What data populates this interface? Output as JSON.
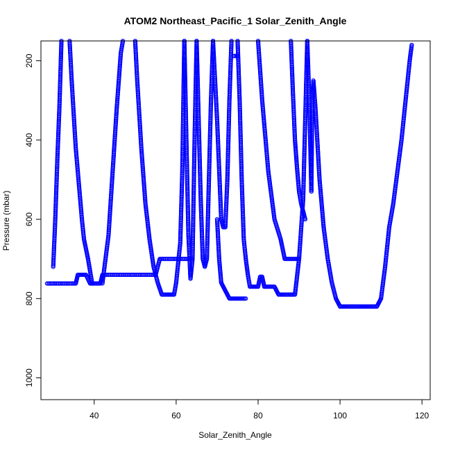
{
  "chart_data": {
    "type": "scatter",
    "title": "ATOM2 Northeast_Pacific_1 Solar_Zenith_Angle",
    "xlabel": "Solar_Zenith_Angle",
    "ylabel": "Pressure (mbar)",
    "xlim": [
      27,
      122
    ],
    "ylim": [
      1055,
      150
    ],
    "y_reversed": true,
    "x_ticks": [
      40,
      60,
      80,
      100,
      120
    ],
    "y_ticks": [
      200,
      400,
      600,
      800,
      1000
    ],
    "marker": "open-circle",
    "colors": {
      "points": "#0000ff",
      "axes": "#000000",
      "background": "#ffffff"
    },
    "grid": false,
    "legend": "none",
    "series": [
      {
        "x": [
          28.5,
          35.5,
          36,
          38,
          39,
          41.5,
          42,
          55,
          56,
          57,
          64
        ],
        "y": [
          762,
          762,
          740,
          740,
          762,
          762,
          740,
          740,
          700,
          700,
          700
        ]
      },
      {
        "x": [
          30,
          30.5,
          31,
          31.5,
          31.8,
          32
        ],
        "y": [
          720,
          600,
          450,
          320,
          220,
          150
        ]
      },
      {
        "x": [
          34,
          34.5,
          35.5,
          37,
          37.5,
          38.5,
          39.5
        ],
        "y": [
          150,
          250,
          420,
          600,
          650,
          700,
          762
        ]
      },
      {
        "x": [
          42,
          43.5,
          44.5,
          45.5,
          46.5,
          47
        ],
        "y": [
          762,
          640,
          480,
          320,
          180,
          150
        ]
      },
      {
        "x": [
          50,
          50.5,
          51.5,
          52.5,
          53.5,
          54.5,
          55.5,
          56.5,
          57.5,
          59.5,
          60,
          61,
          61.5,
          62
        ],
        "y": [
          150,
          250,
          420,
          560,
          650,
          720,
          760,
          790,
          790,
          790,
          760,
          660,
          480,
          150
        ]
      },
      {
        "x": [
          62,
          62.5,
          63,
          63.5,
          64,
          64.5,
          65
        ],
        "y": [
          150,
          400,
          640,
          750,
          700,
          400,
          150
        ]
      },
      {
        "x": [
          65,
          65.5,
          66,
          66.5,
          67,
          67.5,
          68,
          68.5,
          69
        ],
        "y": [
          150,
          350,
          550,
          700,
          720,
          700,
          500,
          300,
          150
        ]
      },
      {
        "x": [
          69,
          70,
          71,
          71.5,
          72,
          72.5,
          73,
          73.5
        ],
        "y": [
          150,
          350,
          600,
          620,
          620,
          500,
          300,
          150
        ]
      },
      {
        "x": [
          70,
          70.5,
          71,
          72,
          73,
          74,
          75,
          76,
          77
        ],
        "y": [
          600,
          700,
          760,
          780,
          800,
          800,
          800,
          800,
          800
        ]
      },
      {
        "x": [
          74,
          75
        ],
        "y": [
          188,
          188
        ]
      },
      {
        "x": [
          75,
          75.5,
          76,
          76.5,
          77,
          77.5,
          78,
          79,
          80,
          80.5,
          81,
          81.5,
          82
        ],
        "y": [
          150,
          300,
          500,
          650,
          700,
          740,
          770,
          770,
          770,
          745,
          745,
          770,
          770
        ]
      },
      {
        "x": [
          82,
          83,
          84,
          85,
          86,
          88
        ],
        "y": [
          770,
          770,
          770,
          790,
          790,
          790
        ]
      },
      {
        "x": [
          80,
          81,
          82.5,
          84,
          85.5,
          86.5,
          87.5,
          89,
          90
        ],
        "y": [
          150,
          300,
          480,
          600,
          650,
          700,
          700,
          700,
          700
        ]
      },
      {
        "x": [
          88,
          89,
          90,
          91,
          91.5,
          92
        ],
        "y": [
          790,
          790,
          700,
          550,
          350,
          150
        ]
      },
      {
        "x": [
          92,
          92.5,
          93,
          93.2,
          93.5,
          94,
          95,
          96,
          97,
          98,
          99,
          100
        ],
        "y": [
          150,
          300,
          530,
          310,
          250,
          320,
          500,
          620,
          700,
          760,
          800,
          820
        ]
      },
      {
        "x": [
          100,
          103,
          106,
          109,
          110,
          111,
          112,
          113,
          114,
          115,
          116,
          117,
          117.5
        ],
        "y": [
          820,
          820,
          820,
          820,
          800,
          720,
          620,
          560,
          480,
          400,
          300,
          200,
          160
        ]
      },
      {
        "x": [
          88,
          88.5,
          89,
          89.5,
          90,
          90.5,
          91,
          91.5
        ],
        "y": [
          150,
          280,
          400,
          470,
          530,
          560,
          580,
          600
        ]
      }
    ]
  }
}
